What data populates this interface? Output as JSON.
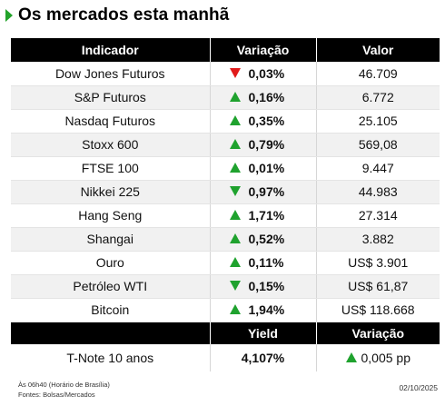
{
  "title": "Os mercados esta manhã",
  "colors": {
    "up": "#1fa22e",
    "down_red": "#e11b1b",
    "header_bg": "#000000"
  },
  "table": {
    "headers": [
      "Indicador",
      "Variação",
      "Valor"
    ],
    "rows": [
      {
        "name": "Dow Jones Futuros",
        "dir": "down-red",
        "change": "0,03%",
        "value": "46.709"
      },
      {
        "name": "S&P Futuros",
        "dir": "up",
        "change": "0,16%",
        "value": "6.772"
      },
      {
        "name": "Nasdaq Futuros",
        "dir": "up",
        "change": "0,35%",
        "value": "25.105"
      },
      {
        "name": "Stoxx 600",
        "dir": "up",
        "change": "0,79%",
        "value": "569,08"
      },
      {
        "name": "FTSE 100",
        "dir": "up",
        "change": "0,01%",
        "value": "9.447"
      },
      {
        "name": "Nikkei 225",
        "dir": "down-green",
        "change": "0,97%",
        "value": "44.983"
      },
      {
        "name": "Hang Seng",
        "dir": "up",
        "change": "1,71%",
        "value": "27.314"
      },
      {
        "name": "Shangai",
        "dir": "up",
        "change": "0,52%",
        "value": "3.882"
      },
      {
        "name": "Ouro",
        "dir": "up",
        "change": "0,11%",
        "value": "US$ 3.901"
      },
      {
        "name": "Petróleo WTI",
        "dir": "down-green",
        "change": "0,15%",
        "value": "US$ 61,87"
      },
      {
        "name": "Bitcoin",
        "dir": "up",
        "change": "1,94%",
        "value": "US$ 118.668"
      }
    ]
  },
  "yield_table": {
    "headers": [
      "",
      "Yield",
      "Variação"
    ],
    "row": {
      "name": "T-Note 10 anos",
      "yield": "4,107%",
      "dir": "up",
      "change": "0,005 pp"
    }
  },
  "footer": {
    "time_note": "Às 06h40 (Horário de Brasília)",
    "sources": "Fontes: Bolsas/Mercados",
    "date": "02/10/2025"
  }
}
